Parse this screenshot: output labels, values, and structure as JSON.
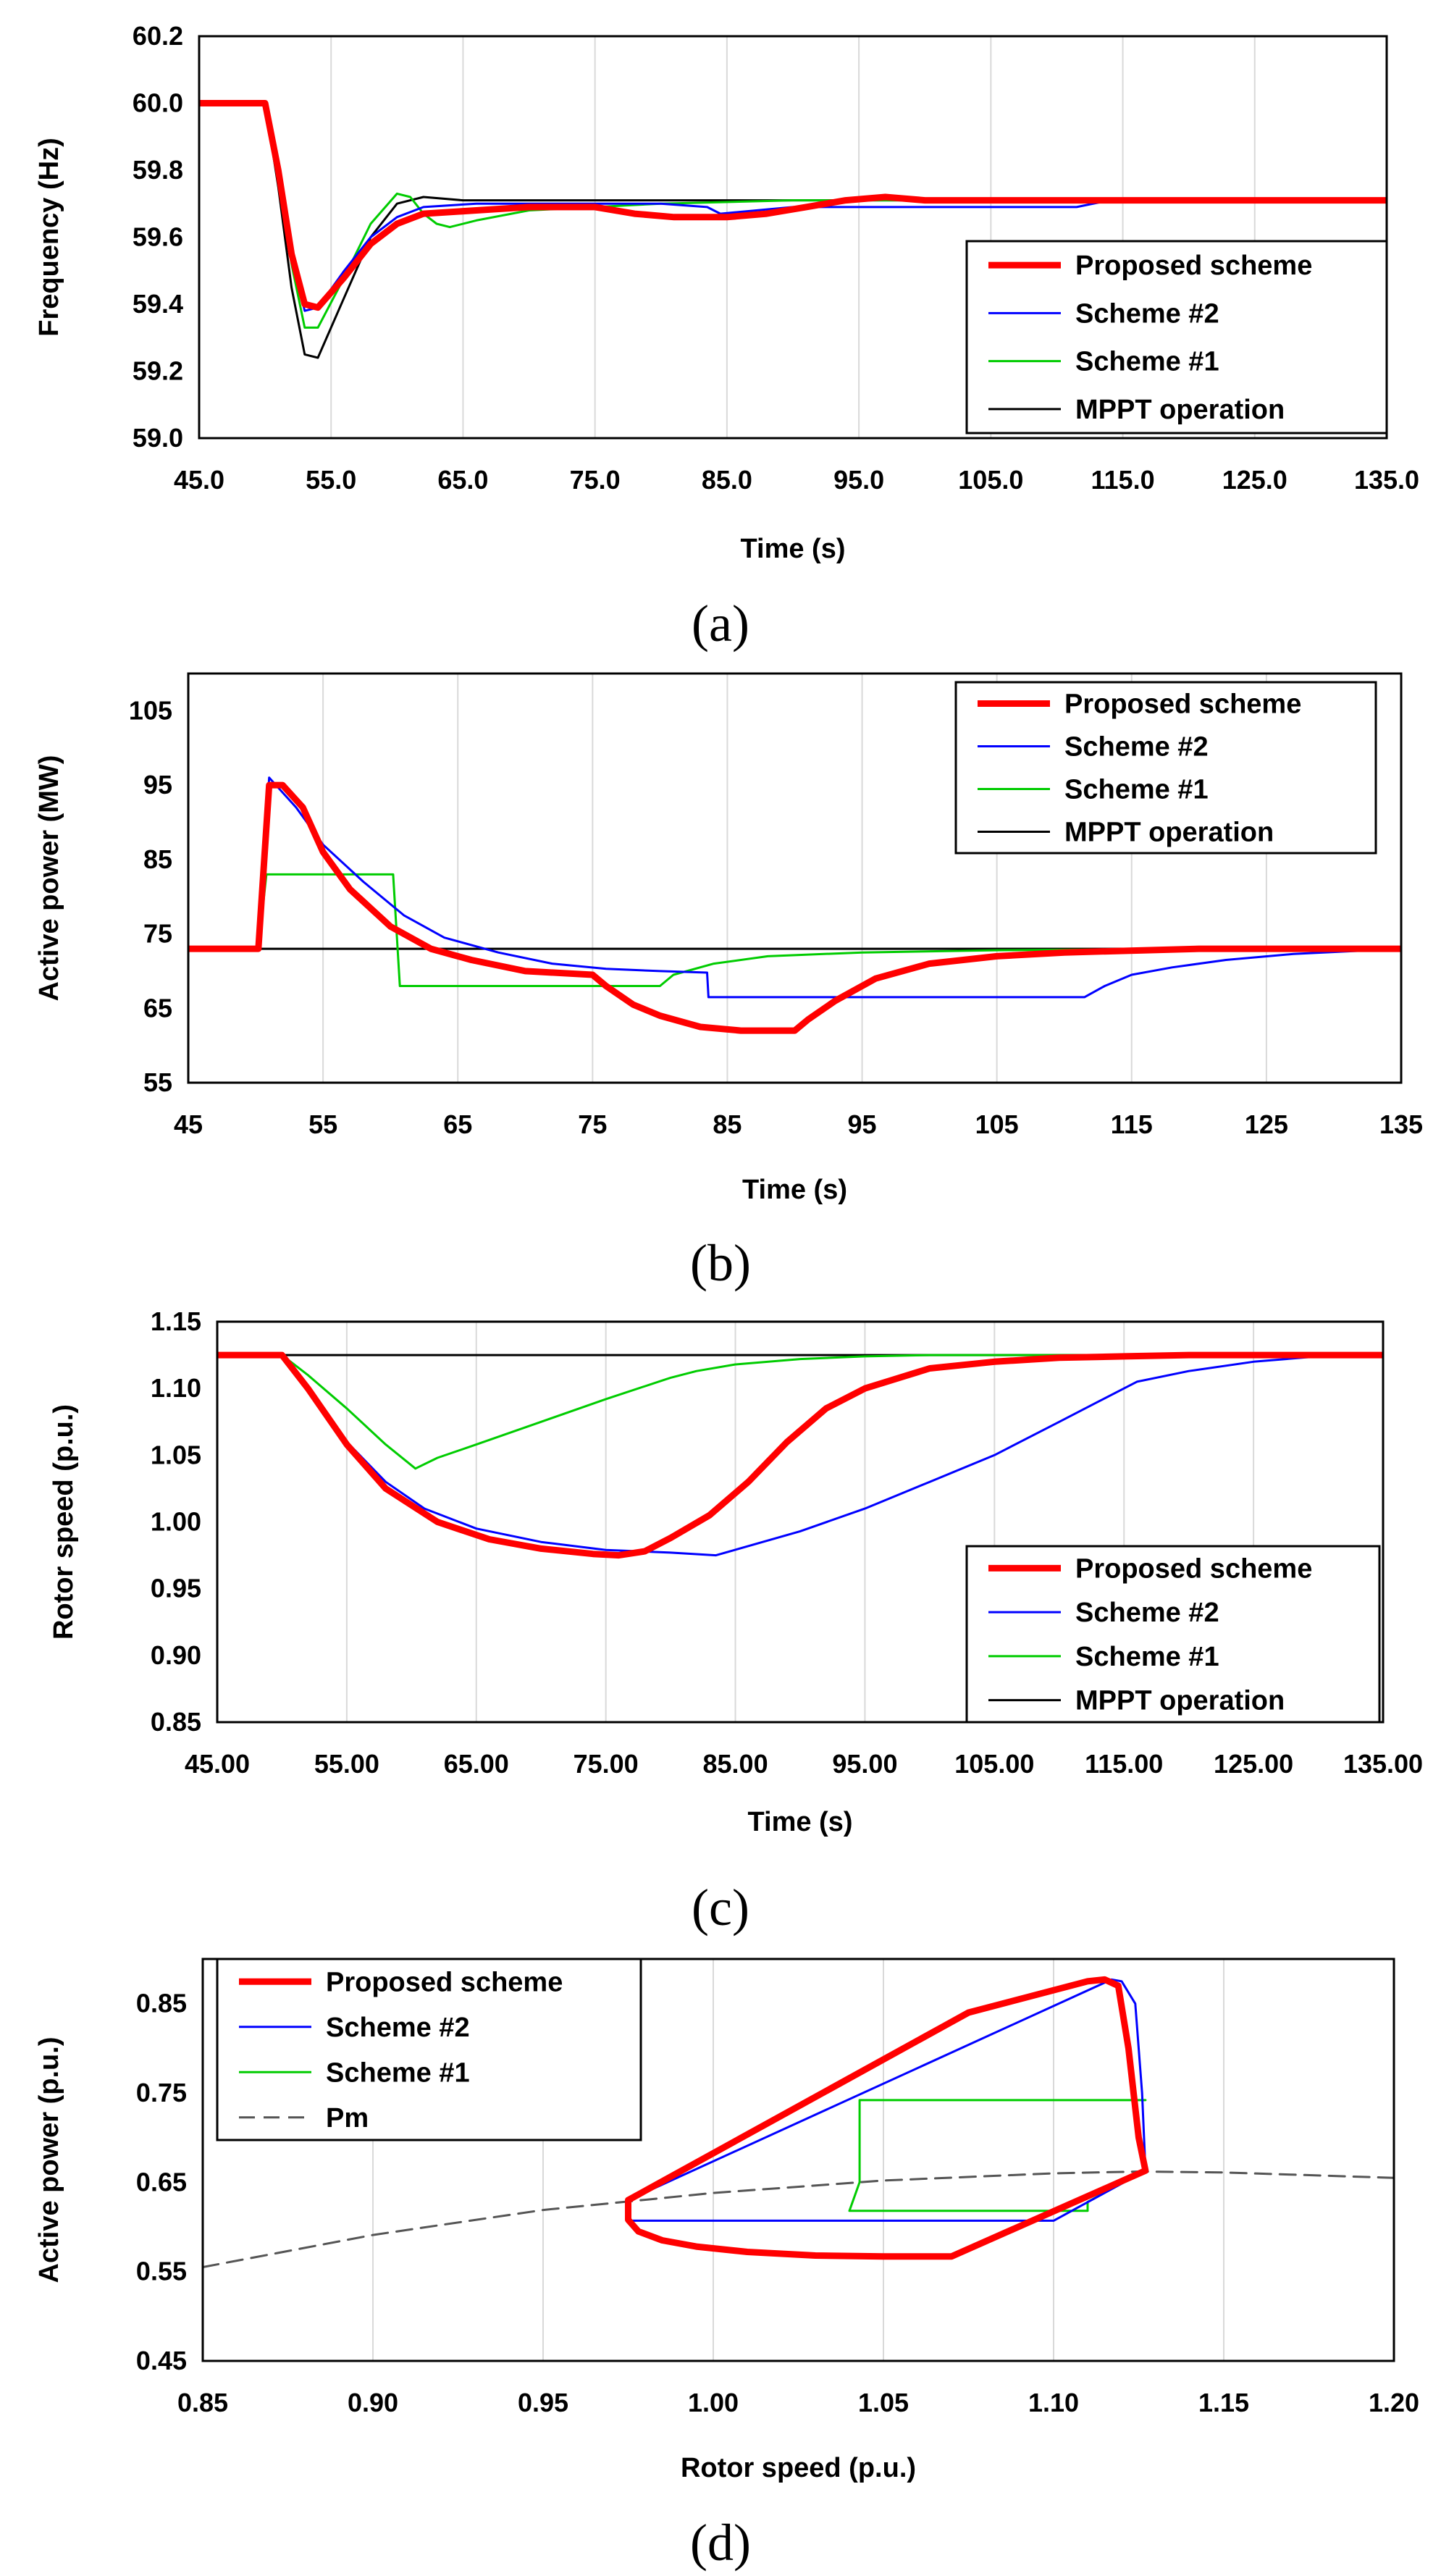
{
  "colors": {
    "proposed": "#ff0000",
    "scheme2": "#0000ff",
    "scheme1": "#00cc00",
    "mppt": "#000000",
    "pm": "#555555",
    "grid": "#d9d9d9"
  },
  "chart_data": [
    {
      "id": "a",
      "type": "line",
      "caption": "(a)",
      "xlabel": "Time (s)",
      "ylabel": "Frequency (Hz)",
      "xlim": [
        45,
        135
      ],
      "ylim": [
        59.0,
        60.2
      ],
      "xticks": [
        45,
        55,
        65,
        75,
        85,
        95,
        105,
        115,
        125,
        135
      ],
      "yticks": [
        59.0,
        59.2,
        59.4,
        59.6,
        59.8,
        60.0,
        60.2
      ],
      "tick_decimals": 1,
      "grid": "vertical",
      "legend_position": "bottom-right",
      "legend": [
        "Proposed scheme",
        "Scheme #2",
        "Scheme #1",
        "MPPT operation"
      ],
      "series": [
        {
          "name": "Proposed scheme",
          "color_key": "proposed",
          "width": 9,
          "x": [
            45,
            50,
            51,
            52,
            53,
            54,
            56,
            58,
            60,
            62,
            66,
            70,
            75,
            78,
            81,
            85,
            88,
            91,
            94,
            97,
            100,
            110,
            120,
            135
          ],
          "y": [
            60.0,
            60.0,
            59.8,
            59.55,
            59.4,
            59.39,
            59.48,
            59.58,
            59.64,
            59.67,
            59.68,
            59.69,
            59.69,
            59.67,
            59.66,
            59.66,
            59.67,
            59.69,
            59.71,
            59.72,
            59.71,
            59.71,
            59.71,
            59.71
          ]
        },
        {
          "name": "Scheme #2",
          "color_key": "scheme2",
          "width": 3,
          "x": [
            45,
            50,
            51,
            52,
            53,
            54,
            56,
            58,
            60,
            62,
            66,
            70,
            80,
            83.5,
            84.5,
            90,
            100,
            111.5,
            114,
            120,
            135
          ],
          "y": [
            60.0,
            60.0,
            59.8,
            59.55,
            59.38,
            59.39,
            59.5,
            59.6,
            59.66,
            59.69,
            59.7,
            59.7,
            59.7,
            59.69,
            59.67,
            59.69,
            59.69,
            59.69,
            59.71,
            59.71,
            59.71
          ]
        },
        {
          "name": "Scheme #1",
          "color_key": "scheme1",
          "width": 3,
          "x": [
            45,
            50,
            51,
            52,
            53,
            54,
            56,
            58,
            60,
            61,
            62,
            63,
            64,
            66,
            70,
            75,
            80,
            90,
            135
          ],
          "y": [
            60.0,
            60.0,
            59.78,
            59.52,
            59.33,
            59.33,
            59.48,
            59.64,
            59.73,
            59.72,
            59.67,
            59.64,
            59.63,
            59.65,
            59.68,
            59.69,
            59.7,
            59.71,
            59.71
          ]
        },
        {
          "name": "MPPT operation",
          "color_key": "mppt",
          "width": 3,
          "x": [
            45,
            50,
            51,
            52,
            53,
            54,
            56,
            58,
            60,
            62,
            65,
            70,
            80,
            135
          ],
          "y": [
            60.0,
            60.0,
            59.75,
            59.45,
            59.25,
            59.24,
            59.42,
            59.6,
            59.7,
            59.72,
            59.71,
            59.71,
            59.71,
            59.71
          ]
        }
      ]
    },
    {
      "id": "b",
      "type": "line",
      "caption": "(b)",
      "xlabel": "Time (s)",
      "ylabel": "Active power (MW)",
      "xlim": [
        45,
        135
      ],
      "ylim": [
        55,
        110
      ],
      "xticks": [
        45,
        55,
        65,
        75,
        85,
        95,
        105,
        115,
        125,
        135
      ],
      "yticks": [
        55,
        65,
        75,
        85,
        95,
        105
      ],
      "tick_decimals": 0,
      "grid": "vertical",
      "legend_position": "top-right",
      "legend": [
        "Proposed scheme",
        "Scheme #2",
        "Scheme #1",
        "MPPT operation"
      ],
      "series": [
        {
          "name": "Proposed scheme",
          "color_key": "proposed",
          "width": 9,
          "x": [
            45,
            50.2,
            51,
            52,
            53.5,
            55,
            57,
            60,
            63,
            66,
            70,
            75,
            76,
            78,
            80,
            83,
            86,
            90,
            91,
            93,
            96,
            100,
            105,
            110,
            120,
            135
          ],
          "y": [
            73,
            73,
            95,
            95,
            92,
            86,
            81,
            76,
            73,
            71.5,
            70,
            69.5,
            68,
            65.5,
            64,
            62.5,
            62,
            62,
            63.5,
            66,
            69,
            71,
            72,
            72.5,
            73,
            73
          ]
        },
        {
          "name": "Scheme #2",
          "color_key": "scheme2",
          "width": 3,
          "x": [
            45,
            50.2,
            51,
            53,
            55,
            58,
            61,
            64,
            68,
            72,
            76,
            80,
            83.5,
            83.6,
            100,
            111.5,
            113,
            115,
            118,
            122,
            127,
            135
          ],
          "y": [
            73,
            73,
            96,
            92,
            87,
            82,
            77.5,
            74.5,
            72.5,
            71,
            70.3,
            70,
            69.8,
            66.5,
            66.5,
            66.5,
            68,
            69.5,
            70.5,
            71.5,
            72.3,
            73
          ]
        },
        {
          "name": "Scheme #1",
          "color_key": "scheme1",
          "width": 3,
          "x": [
            45,
            50.2,
            50.8,
            60.2,
            60.7,
            80,
            81,
            84,
            88,
            95,
            105,
            120,
            135
          ],
          "y": [
            73,
            73,
            83,
            83,
            68,
            68,
            69.5,
            71,
            72,
            72.5,
            72.8,
            73,
            73
          ]
        },
        {
          "name": "MPPT operation",
          "color_key": "mppt",
          "width": 3,
          "x": [
            45,
            135
          ],
          "y": [
            73,
            73
          ]
        }
      ]
    },
    {
      "id": "c",
      "type": "line",
      "caption": "(c)",
      "xlabel": "Time (s)",
      "ylabel": "Rotor speed (p.u.)",
      "xlim": [
        45,
        135
      ],
      "ylim": [
        0.85,
        1.15
      ],
      "xticks": [
        45,
        55,
        65,
        75,
        85,
        95,
        105,
        115,
        125,
        135
      ],
      "yticks": [
        0.85,
        0.9,
        0.95,
        1.0,
        1.05,
        1.1,
        1.15
      ],
      "tick_decimals": 2,
      "grid": "vertical",
      "legend_position": "bottom-right",
      "legend": [
        "Proposed scheme",
        "Scheme #2",
        "Scheme #1",
        "MPPT operation"
      ],
      "series": [
        {
          "name": "Proposed scheme",
          "color_key": "proposed",
          "width": 9,
          "x": [
            45,
            50,
            52,
            55,
            58,
            62,
            66,
            70,
            74,
            76,
            78,
            80,
            83,
            86,
            89,
            92,
            95,
            100,
            105,
            110,
            115,
            120,
            135
          ],
          "y": [
            1.125,
            1.125,
            1.1,
            1.058,
            1.025,
            1.0,
            0.987,
            0.98,
            0.976,
            0.975,
            0.978,
            0.988,
            1.005,
            1.03,
            1.06,
            1.085,
            1.1,
            1.115,
            1.12,
            1.123,
            1.124,
            1.125,
            1.125
          ]
        },
        {
          "name": "Scheme #2",
          "color_key": "scheme2",
          "width": 3,
          "x": [
            45,
            50,
            52,
            55,
            58,
            61,
            65,
            70,
            75,
            80,
            83.5,
            90,
            95,
            100,
            105,
            110,
            113,
            116,
            120,
            125,
            130,
            135
          ],
          "y": [
            1.125,
            1.125,
            1.1,
            1.06,
            1.03,
            1.01,
            0.995,
            0.985,
            0.979,
            0.977,
            0.975,
            0.993,
            1.01,
            1.03,
            1.05,
            1.075,
            1.09,
            1.105,
            1.113,
            1.12,
            1.124,
            1.125
          ]
        },
        {
          "name": "Scheme #1",
          "color_key": "scheme1",
          "width": 3,
          "x": [
            45,
            50,
            52,
            55,
            58,
            60.3,
            62,
            65,
            70,
            75,
            80,
            82,
            85,
            90,
            95,
            100,
            135
          ],
          "y": [
            1.125,
            1.125,
            1.11,
            1.085,
            1.058,
            1.04,
            1.048,
            1.058,
            1.075,
            1.092,
            1.108,
            1.113,
            1.118,
            1.122,
            1.124,
            1.125,
            1.125
          ]
        },
        {
          "name": "MPPT operation",
          "color_key": "mppt",
          "width": 3,
          "x": [
            45,
            135
          ],
          "y": [
            1.125,
            1.125
          ]
        }
      ]
    },
    {
      "id": "d",
      "type": "line",
      "caption": "(d)",
      "xlabel": "Rotor speed (p.u.)",
      "ylabel": "Active power (p.u.)",
      "xlim": [
        0.85,
        1.2
      ],
      "ylim": [
        0.45,
        0.9
      ],
      "xticks": [
        0.85,
        0.9,
        0.95,
        1.0,
        1.05,
        1.1,
        1.15,
        1.2
      ],
      "yticks": [
        0.45,
        0.55,
        0.65,
        0.75,
        0.85
      ],
      "tick_decimals": 2,
      "grid": "vertical",
      "legend_position": "top-left",
      "legend": [
        "Proposed scheme",
        "Scheme #2",
        "Scheme #1",
        "Pm"
      ],
      "series": [
        {
          "name": "Proposed scheme",
          "color_key": "proposed",
          "width": 9,
          "x": [
            1.127,
            1.125,
            1.122,
            1.119,
            1.115,
            1.11,
            1.075,
            0.975,
            0.975,
            0.978,
            0.985,
            0.995,
            1.01,
            1.03,
            1.05,
            1.07,
            1.127
          ],
          "y": [
            0.663,
            0.7,
            0.8,
            0.87,
            0.877,
            0.875,
            0.84,
            0.63,
            0.608,
            0.595,
            0.585,
            0.578,
            0.572,
            0.568,
            0.567,
            0.567,
            0.663
          ]
        },
        {
          "name": "Scheme #2",
          "color_key": "scheme2",
          "width": 3,
          "x": [
            0.975,
            1.117,
            1.12,
            1.124,
            1.126,
            1.127,
            1.1,
            0.975,
            0.975
          ],
          "y": [
            0.63,
            0.877,
            0.875,
            0.85,
            0.75,
            0.663,
            0.607,
            0.607,
            0.63
          ]
        },
        {
          "name": "Scheme #1",
          "color_key": "scheme1",
          "width": 3,
          "x": [
            1.127,
            1.043,
            1.043,
            1.04,
            1.045,
            1.11,
            1.11,
            1.127
          ],
          "y": [
            0.742,
            0.742,
            0.65,
            0.618,
            0.618,
            0.618,
            0.628,
            0.663
          ]
        },
        {
          "name": "Pm",
          "color_key": "pm",
          "width": 3,
          "dashed": true,
          "x": [
            0.85,
            0.9,
            0.95,
            1.0,
            1.05,
            1.1,
            1.125,
            1.15,
            1.2
          ],
          "y": [
            0.555,
            0.591,
            0.619,
            0.638,
            0.652,
            0.66,
            0.662,
            0.661,
            0.655
          ]
        }
      ]
    }
  ]
}
